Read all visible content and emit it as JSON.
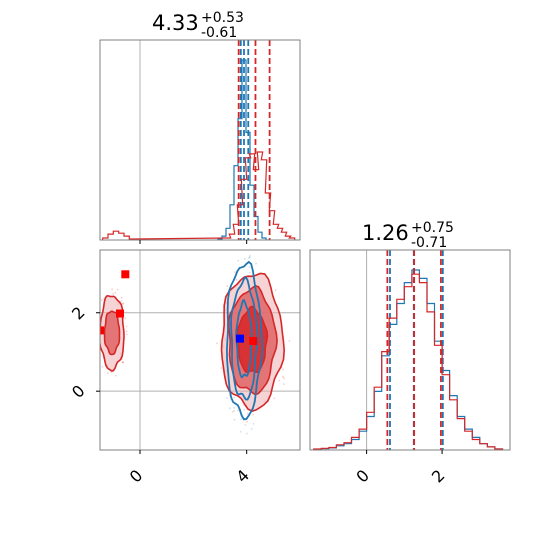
{
  "chart_data": {
    "type": "corner",
    "colors": {
      "run_a": "#1f77b4",
      "run_b": "#d62728",
      "truth_lines": "#b0b0b0",
      "marker_truth": "#0000ff",
      "marker_alt": "#ff0000",
      "frame": "#808080"
    },
    "parameters": [
      {
        "median": "4.33",
        "plus": "+0.53",
        "minus": "-0.61",
        "range": [
          -1.5,
          6.0
        ],
        "ticks": [
          0,
          4
        ],
        "tick_labels": [
          "0",
          "4"
        ],
        "truth": 0
      },
      {
        "median": "1.26",
        "plus": "+0.75",
        "minus": "-0.71",
        "range": [
          -1.5,
          3.8
        ],
        "ticks": [
          0,
          2
        ],
        "tick_labels": [
          "0",
          "2"
        ],
        "truth": 0
      }
    ],
    "hist_param0": {
      "x_range": [
        -1.5,
        6.0
      ],
      "series": [
        {
          "name": "",
          "color": "#1f77b4",
          "quantiles": [
            3.78,
            3.9,
            4.06
          ],
          "bins_x": [
            3.0,
            3.15,
            3.3,
            3.45,
            3.6,
            3.75,
            3.9,
            4.05,
            4.2,
            4.35,
            4.5,
            4.65,
            4.8
          ],
          "counts": [
            0.5,
            2,
            6,
            18,
            38,
            62,
            92,
            55,
            28,
            12,
            4,
            1,
            0
          ]
        },
        {
          "name": "",
          "color": "#d62728",
          "quantiles": [
            3.7,
            4.33,
            4.86
          ],
          "bins_x": [
            -1.3,
            -1.1,
            -0.9,
            -0.7,
            -0.5,
            -0.3,
            3.3,
            3.45,
            3.6,
            3.75,
            3.9,
            4.05,
            4.2,
            4.35,
            4.5,
            4.65,
            4.8,
            4.95,
            5.1,
            5.25,
            5.4,
            5.55,
            5.7
          ],
          "counts": [
            1,
            3,
            4.5,
            3.5,
            2,
            0.5,
            1,
            3,
            8,
            18,
            31,
            42,
            44,
            36,
            45,
            41,
            24,
            15,
            8,
            6,
            4,
            2,
            1
          ]
        }
      ]
    },
    "hist_param1": {
      "x_range": [
        -1.5,
        3.8
      ],
      "series": [
        {
          "name": "",
          "color": "#1f77b4",
          "quantiles": [
            0.62,
            1.25,
            2.02
          ],
          "bins_x": [
            -1.3,
            -1.1,
            -0.9,
            -0.7,
            -0.5,
            -0.3,
            -0.1,
            0.1,
            0.3,
            0.5,
            0.7,
            0.9,
            1.1,
            1.3,
            1.5,
            1.7,
            1.9,
            2.1,
            2.3,
            2.5,
            2.7,
            2.9,
            3.1,
            3.3,
            3.5
          ],
          "counts": [
            0.3,
            0.6,
            1,
            2,
            3,
            5,
            9,
            16,
            28,
            45,
            60,
            70,
            80,
            86,
            82,
            70,
            52,
            38,
            26,
            16,
            10,
            6,
            3,
            1.5,
            0.5
          ]
        },
        {
          "name": "",
          "color": "#d62728",
          "quantiles": [
            0.55,
            1.26,
            1.97
          ],
          "bins_x": [
            -1.3,
            -1.1,
            -0.9,
            -0.7,
            -0.5,
            -0.3,
            -0.1,
            0.1,
            0.3,
            0.5,
            0.7,
            0.9,
            1.1,
            1.3,
            1.5,
            1.7,
            1.9,
            2.1,
            2.3,
            2.5,
            2.7,
            2.9,
            3.1,
            3.3,
            3.5
          ],
          "counts": [
            0.5,
            0.8,
            1.2,
            2.5,
            3.5,
            6,
            10,
            18,
            30,
            47,
            63,
            72,
            78,
            84,
            80,
            66,
            50,
            36,
            24,
            15,
            9,
            5,
            3,
            1.5,
            0.5
          ]
        }
      ]
    },
    "scatter_2d": {
      "x_range": [
        -1.5,
        6.0
      ],
      "y_range": [
        -1.5,
        3.6
      ],
      "blobs": [
        {
          "name": "",
          "color": "#d62728",
          "cx": 4.2,
          "cy": 1.28,
          "levels": [
            [
              0.55,
              0.82
            ],
            [
              0.88,
              1.33
            ],
            [
              1.15,
              1.72
            ]
          ]
        },
        {
          "name": "",
          "color": "#d62728",
          "cx": -1.05,
          "cy": 1.5,
          "levels": [
            [
              0.28,
              0.55
            ],
            [
              0.45,
              0.95
            ]
          ]
        },
        {
          "name": "",
          "color": "#1f77b4",
          "cx": 3.9,
          "cy": 1.3,
          "levels": [
            [
              0.28,
              0.95
            ],
            [
              0.48,
              1.5
            ],
            [
              0.65,
              1.95
            ]
          ]
        }
      ],
      "markers": [
        {
          "color": "#0000ff",
          "x": 3.75,
          "y": 1.34
        },
        {
          "color": "#ff0000",
          "x": 4.25,
          "y": 1.28
        },
        {
          "color": "#ff0000",
          "x": -0.55,
          "y": 2.98
        },
        {
          "color": "#ff0000",
          "x": -0.75,
          "y": 1.98
        },
        {
          "color": "#ff0000",
          "x": -1.5,
          "y": 1.55
        }
      ],
      "y_ticks": [
        0,
        2
      ],
      "y_tick_labels": [
        "0",
        "2"
      ]
    }
  }
}
